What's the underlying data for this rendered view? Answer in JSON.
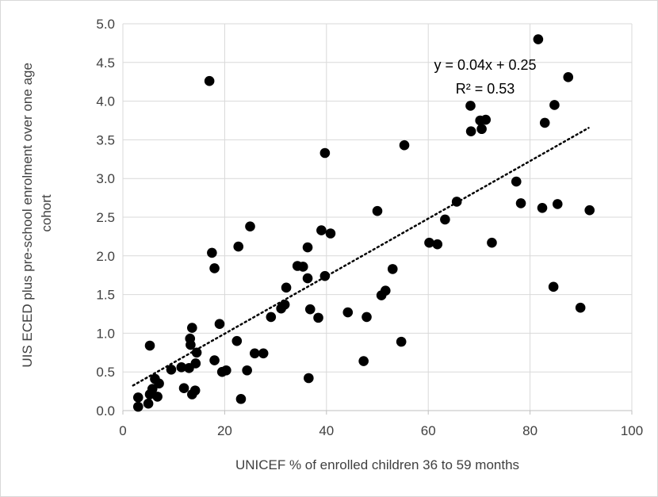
{
  "chart_data": {
    "type": "scatter",
    "xlabel": "UNICEF % of enrolled children 36 to 59 months",
    "ylabel_lines": [
      "UIS ECED plus pre-school enrolment over one age",
      "cohort"
    ],
    "xlim": [
      0,
      100
    ],
    "ylim": [
      0,
      5
    ],
    "x_ticks": [
      0,
      20,
      40,
      60,
      80,
      100
    ],
    "x_tick_labels": [
      "0",
      "20",
      "40",
      "60",
      "80",
      "100"
    ],
    "y_ticks": [
      0,
      0.5,
      1,
      1.5,
      2,
      2.5,
      3,
      3.5,
      4,
      4.5,
      5
    ],
    "y_tick_labels": [
      "0.0",
      "0.5",
      "1.0",
      "1.5",
      "2.0",
      "2.5",
      "3.0",
      "3.5",
      "4.0",
      "4.5",
      "5.0"
    ],
    "grid": true,
    "point_color": "#000000",
    "trendline": {
      "slope": 0.0372,
      "intercept": 0.25,
      "x_range": [
        2,
        91.5
      ],
      "style": "dotted",
      "equation_label": "y = 0.04x + 0.25",
      "r2_label": "R² = 0.53"
    },
    "points": [
      [
        3,
        0.05
      ],
      [
        3,
        0.17
      ],
      [
        5,
        0.09
      ],
      [
        5.3,
        0.21
      ],
      [
        5.8,
        0.28
      ],
      [
        6.3,
        0.41
      ],
      [
        6.8,
        0.18
      ],
      [
        7.1,
        0.35
      ],
      [
        5.3,
        0.84
      ],
      [
        9.5,
        0.53
      ],
      [
        11.5,
        0.56
      ],
      [
        12,
        0.29
      ],
      [
        13,
        0.55
      ],
      [
        13.2,
        0.93
      ],
      [
        13.3,
        0.85
      ],
      [
        13.6,
        0.21
      ],
      [
        13.6,
        1.07
      ],
      [
        14.2,
        0.26
      ],
      [
        14.3,
        0.61
      ],
      [
        14.5,
        0.75
      ],
      [
        17,
        4.26
      ],
      [
        17.5,
        2.04
      ],
      [
        18,
        0.65
      ],
      [
        18,
        1.84
      ],
      [
        19,
        1.12
      ],
      [
        19.5,
        0.5
      ],
      [
        20.3,
        0.52
      ],
      [
        22.4,
        0.9
      ],
      [
        22.7,
        2.12
      ],
      [
        23.2,
        0.15
      ],
      [
        24.4,
        0.52
      ],
      [
        25,
        2.38
      ],
      [
        25.9,
        0.74
      ],
      [
        27.6,
        0.74
      ],
      [
        29.1,
        1.21
      ],
      [
        31.1,
        1.32
      ],
      [
        31.8,
        1.37
      ],
      [
        32.1,
        1.59
      ],
      [
        34.3,
        1.87
      ],
      [
        35.4,
        1.86
      ],
      [
        36.3,
        1.71
      ],
      [
        36.3,
        2.11
      ],
      [
        36.5,
        0.42
      ],
      [
        36.8,
        1.31
      ],
      [
        38.4,
        1.2
      ],
      [
        39,
        2.33
      ],
      [
        39.7,
        1.74
      ],
      [
        39.7,
        3.33
      ],
      [
        40.8,
        2.29
      ],
      [
        44.2,
        1.27
      ],
      [
        47.3,
        0.64
      ],
      [
        47.9,
        1.21
      ],
      [
        50,
        2.58
      ],
      [
        50.8,
        1.49
      ],
      [
        51.6,
        1.55
      ],
      [
        53,
        1.83
      ],
      [
        54.7,
        0.89
      ],
      [
        55.3,
        3.43
      ],
      [
        60.2,
        2.17
      ],
      [
        61.8,
        2.15
      ],
      [
        63.3,
        2.47
      ],
      [
        65.6,
        2.7
      ],
      [
        68.3,
        3.94
      ],
      [
        68.4,
        3.61
      ],
      [
        70.2,
        3.75
      ],
      [
        70.5,
        3.64
      ],
      [
        71.3,
        3.76
      ],
      [
        72.5,
        2.17
      ],
      [
        77.3,
        2.96
      ],
      [
        78.2,
        2.68
      ],
      [
        81.6,
        4.8
      ],
      [
        82.4,
        2.62
      ],
      [
        82.9,
        3.72
      ],
      [
        84.6,
        1.6
      ],
      [
        84.8,
        3.95
      ],
      [
        85.4,
        2.67
      ],
      [
        87.5,
        4.31
      ],
      [
        89.9,
        1.33
      ],
      [
        91.7,
        2.59
      ]
    ]
  }
}
